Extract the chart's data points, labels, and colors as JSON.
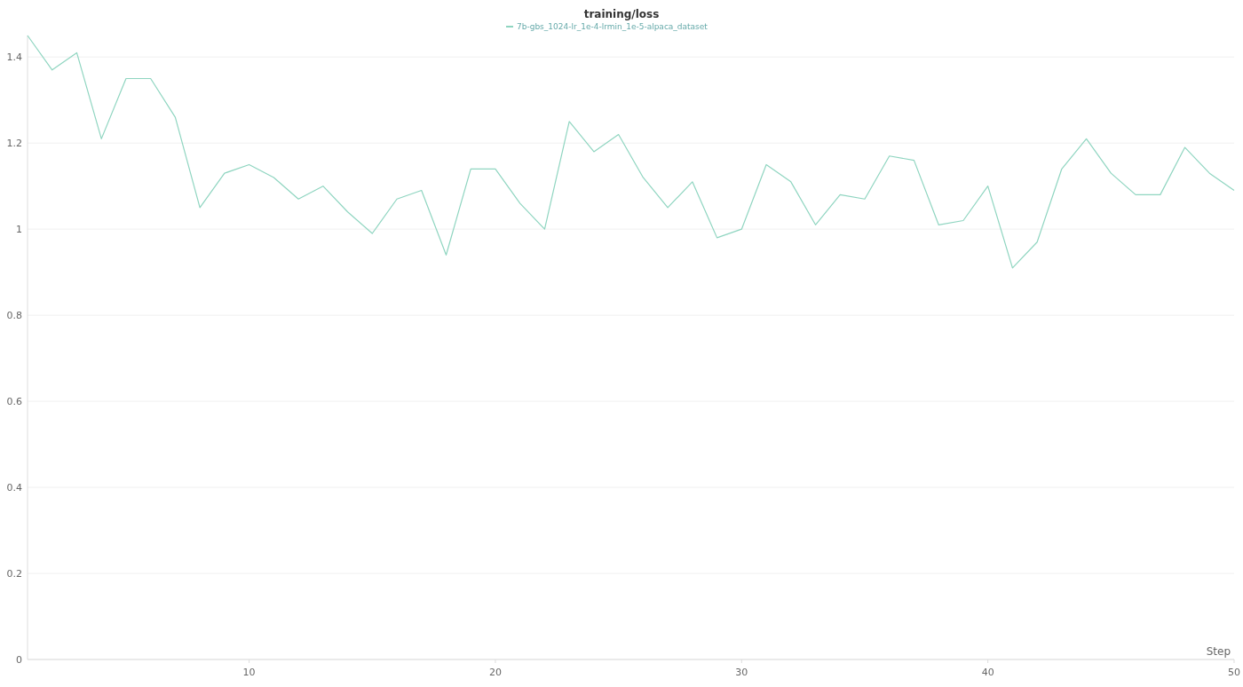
{
  "chart_data": {
    "type": "line",
    "title": "training/loss",
    "xlabel": "Step",
    "x": [
      1,
      2,
      3,
      4,
      5,
      6,
      7,
      8,
      9,
      10,
      11,
      12,
      13,
      14,
      15,
      16,
      17,
      18,
      19,
      20,
      21,
      22,
      23,
      24,
      25,
      26,
      27,
      28,
      29,
      30,
      31,
      32,
      33,
      34,
      35,
      36,
      37,
      38,
      39,
      40,
      41,
      42,
      43,
      44,
      45,
      46,
      47,
      48,
      49,
      50
    ],
    "series": [
      {
        "name": "7b-gbs_1024-lr_1e-4-lrmin_1e-5-alpaca_dataset",
        "color": "#8fd5c0",
        "values": [
          1.45,
          1.37,
          1.41,
          1.21,
          1.35,
          1.35,
          1.26,
          1.05,
          1.13,
          1.15,
          1.12,
          1.07,
          1.1,
          1.04,
          0.99,
          1.07,
          1.09,
          0.94,
          1.14,
          1.14,
          1.06,
          1.0,
          1.25,
          1.18,
          1.22,
          1.12,
          1.05,
          1.11,
          0.98,
          1.0,
          1.15,
          1.11,
          1.01,
          1.08,
          1.07,
          1.17,
          1.16,
          1.01,
          1.02,
          1.1,
          0.91,
          0.97,
          1.14,
          1.21,
          1.13,
          1.08,
          1.08,
          1.19,
          1.13,
          1.09
        ]
      }
    ],
    "xlim": [
      1,
      50
    ],
    "ylim": [
      0,
      1.45
    ],
    "xticks": [
      10,
      20,
      30,
      40,
      50
    ],
    "yticks": [
      0,
      0.2,
      0.4,
      0.6,
      0.8,
      1,
      1.2,
      1.4
    ],
    "grid": "y",
    "legend": "top",
    "marker": "none",
    "line_style": "solid"
  }
}
